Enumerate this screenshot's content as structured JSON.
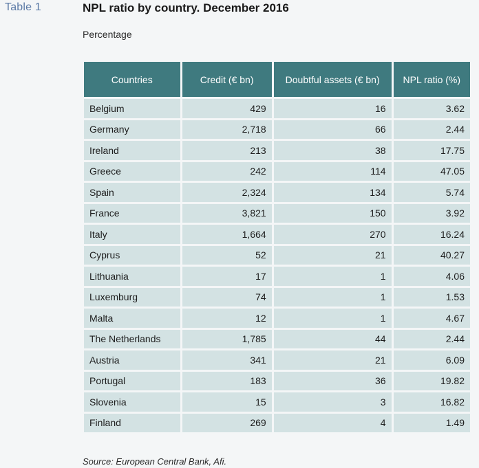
{
  "table_label": "Table   1",
  "title": "NPL ratio by country. December 2016",
  "subtitle": "Percentage",
  "columns": [
    "Countries",
    "Credit (€ bn)",
    "Doubtful assets (€ bn)",
    "NPL ratio (%)"
  ],
  "rows": [
    {
      "country": "Belgium",
      "credit": "429",
      "doubtful": "16",
      "npl": "3.62"
    },
    {
      "country": "Germany",
      "credit": "2,718",
      "doubtful": "66",
      "npl": "2.44"
    },
    {
      "country": "Ireland",
      "credit": "213",
      "doubtful": "38",
      "npl": "17.75"
    },
    {
      "country": "Greece",
      "credit": "242",
      "doubtful": "114",
      "npl": "47.05"
    },
    {
      "country": "Spain",
      "credit": "2,324",
      "doubtful": "134",
      "npl": "5.74"
    },
    {
      "country": "France",
      "credit": "3,821",
      "doubtful": "150",
      "npl": "3.92"
    },
    {
      "country": "Italy",
      "credit": "1,664",
      "doubtful": "270",
      "npl": "16.24"
    },
    {
      "country": "Cyprus",
      "credit": "52",
      "doubtful": "21",
      "npl": "40.27"
    },
    {
      "country": "Lithuania",
      "credit": "17",
      "doubtful": "1",
      "npl": "4.06"
    },
    {
      "country": "Luxemburg",
      "credit": "74",
      "doubtful": "1",
      "npl": "1.53"
    },
    {
      "country": "Malta",
      "credit": "12",
      "doubtful": "1",
      "npl": "4.67"
    },
    {
      "country": "The Netherlands",
      "credit": "1,785",
      "doubtful": "44",
      "npl": "2.44"
    },
    {
      "country": "Austria",
      "credit": "341",
      "doubtful": "21",
      "npl": "6.09"
    },
    {
      "country": "Portugal",
      "credit": "183",
      "doubtful": "36",
      "npl": "19.82"
    },
    {
      "country": "Slovenia",
      "credit": "15",
      "doubtful": "3",
      "npl": "16.82"
    },
    {
      "country": "Finland",
      "credit": "269",
      "doubtful": "4",
      "npl": "1.49"
    }
  ],
  "source": "Source: European Central Bank, Afi.",
  "colors": {
    "header_bg": "#3f7a7f",
    "cell_bg": "#d3e2e3",
    "label_color": "#5b7aa6"
  }
}
